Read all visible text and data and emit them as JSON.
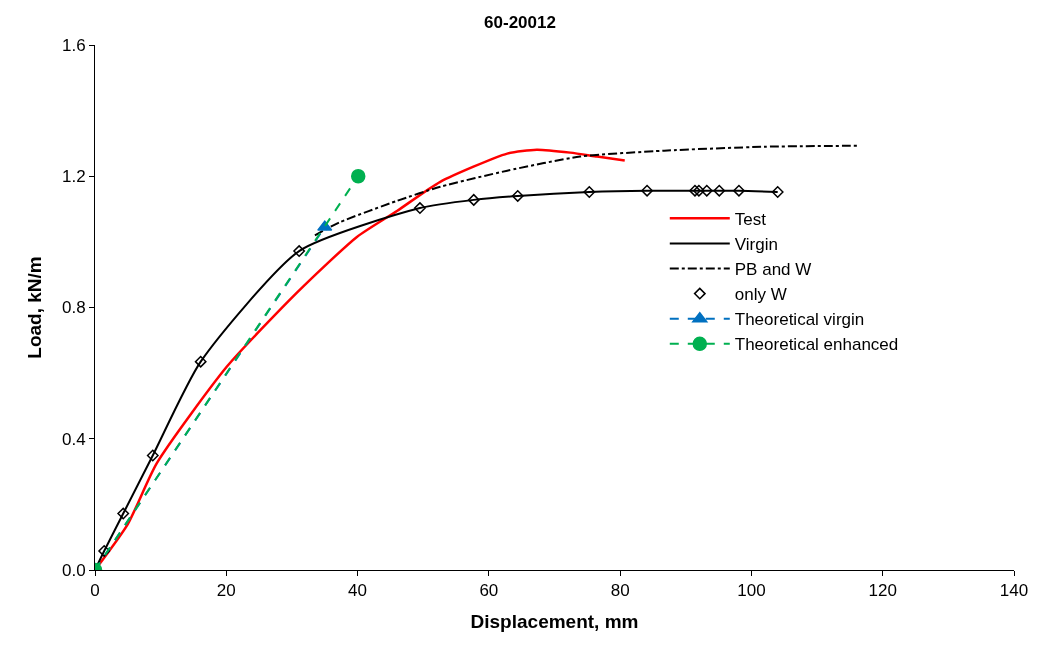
{
  "chart_data": {
    "type": "line",
    "title": "60-20012",
    "xlabel": "Displacement, mm",
    "ylabel": "Load, kN/m",
    "xlim": [
      0,
      140
    ],
    "xticks": [
      0,
      20,
      40,
      60,
      80,
      100,
      120,
      140
    ],
    "ylim": [
      0,
      1.6
    ],
    "yticks": [
      {
        "value": 0,
        "label": "0.0"
      },
      0.4,
      0.8,
      1.2,
      1.6
    ],
    "legend": "right",
    "series": [
      {
        "name": "Test",
        "color": "#ff0000",
        "line_style": "solid",
        "marker": "none",
        "x": [
          0,
          5,
          9.4,
          20.1,
          30.8,
          39.9,
          46,
          52.6,
          62.8,
          67.3,
          72.4,
          76.5,
          80.7
        ],
        "values": [
          0,
          0.14,
          0.325,
          0.62,
          0.846,
          1.015,
          1.094,
          1.183,
          1.269,
          1.281,
          1.272,
          1.26,
          1.248
        ]
      },
      {
        "name": "Virgin",
        "color": "#000000",
        "line_style": "solid",
        "marker": "none",
        "x": [
          0,
          1.4,
          4.3,
          8.8,
          16.1,
          31.1,
          49.5,
          57.7,
          64.4,
          75.3,
          84.1,
          91.4,
          98.1,
          104.0
        ],
        "values": [
          0,
          0.058,
          0.172,
          0.349,
          0.635,
          0.972,
          1.103,
          1.128,
          1.14,
          1.152,
          1.156,
          1.156,
          1.156,
          1.152
        ]
      },
      {
        "name": "PB and W",
        "color": "#000000",
        "line_style": "dashdot",
        "marker": "none",
        "x": [
          33.5,
          37.3,
          46,
          52.6,
          62.8,
          73.9,
          86.7,
          101.9,
          116.5
        ],
        "values": [
          1.02,
          1.06,
          1.125,
          1.168,
          1.217,
          1.26,
          1.278,
          1.29,
          1.293
        ]
      },
      {
        "name": "only W",
        "type": "scatter",
        "color": "#000000",
        "marker": "diamond",
        "x": [
          1.4,
          4.3,
          8.8,
          16.1,
          31.1,
          49.5,
          57.7,
          64.4,
          75.3,
          84.1,
          91.4,
          92.0,
          93.2,
          95.1,
          98.1,
          104.0
        ],
        "values": [
          0.058,
          0.172,
          0.349,
          0.635,
          0.972,
          1.103,
          1.128,
          1.14,
          1.152,
          1.156,
          1.156,
          1.156,
          1.156,
          1.156,
          1.156,
          1.152
        ]
      },
      {
        "name": "Theoretical virgin",
        "color": "#0070c0",
        "line_style": "dashed",
        "marker": "triangle",
        "x": [
          0,
          35.0
        ],
        "values": [
          0,
          1.045
        ]
      },
      {
        "name": "Theoretical enhanced",
        "color": "#00b050",
        "line_style": "dashed",
        "marker": "circle",
        "x": [
          0,
          40.1
        ],
        "values": [
          0,
          1.2
        ]
      }
    ]
  }
}
